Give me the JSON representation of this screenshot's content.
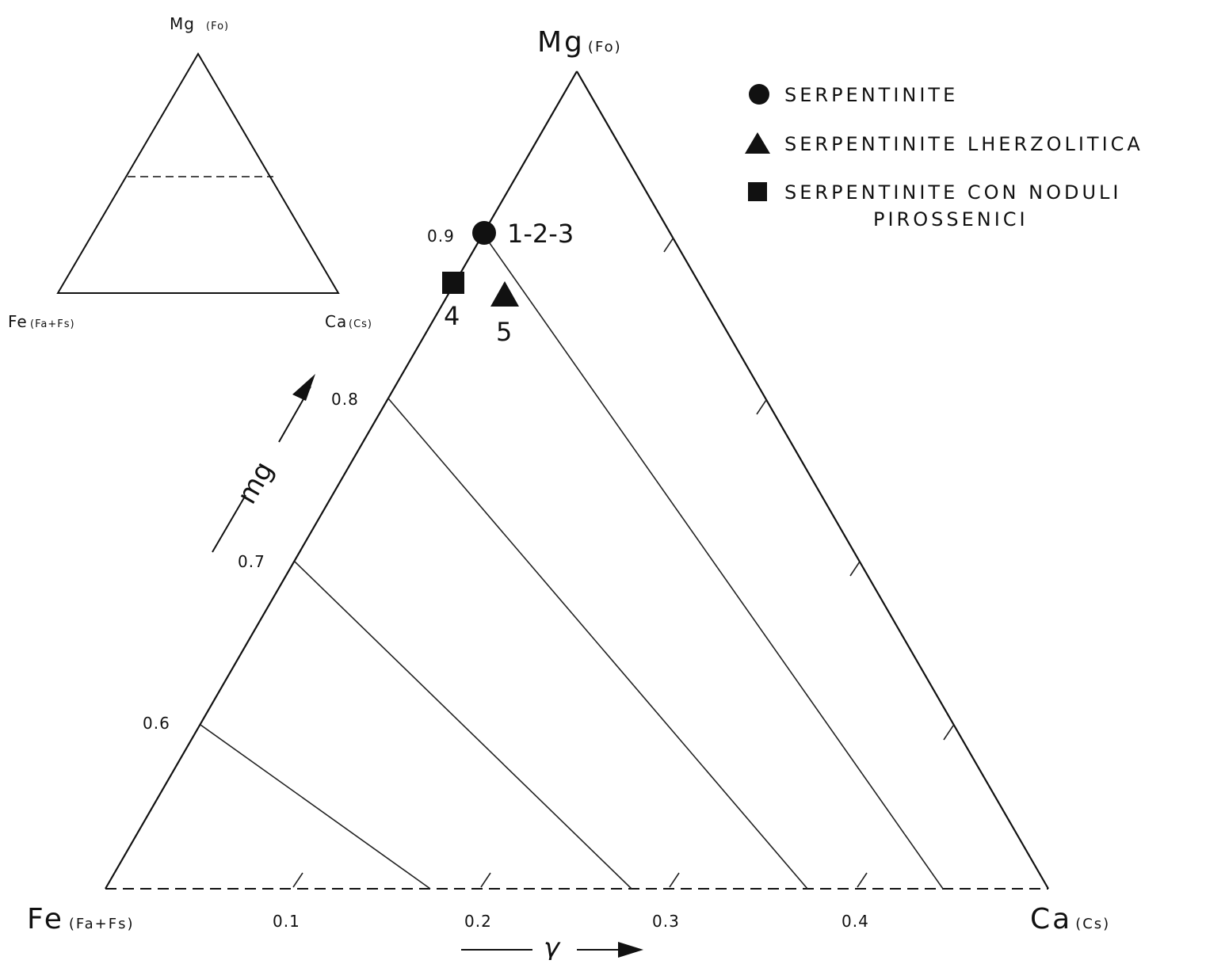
{
  "chart_data": {
    "type": "scatter",
    "diagram": "ternary",
    "vertices": {
      "top": {
        "label": "Mg",
        "sub": "(Fo)"
      },
      "left": {
        "label": "Fe",
        "sub": "(Fa+Fs)"
      },
      "right": {
        "label": "Ca",
        "sub": "(Cs)"
      }
    },
    "axes": {
      "mg": {
        "label": "mg",
        "ticks": [
          "0.6",
          "0.7",
          "0.8",
          "0.9"
        ]
      },
      "gamma": {
        "label": "γ",
        "ticks": [
          "0.1",
          "0.2",
          "0.3",
          "0.4"
        ]
      }
    },
    "points": [
      {
        "label": "1-2-3",
        "series": "SERPENTINITE",
        "marker": "circle",
        "mg": 0.9,
        "gamma": 0.205
      },
      {
        "label": "4",
        "series": "SERPENTINITE CON NODULI PIROSSENICI",
        "marker": "square",
        "mg": 0.87,
        "gamma": 0.185
      },
      {
        "label": "5",
        "series": "SERPENTINITE LHERZOLITICA",
        "marker": "triangle",
        "mg": 0.84,
        "gamma": 0.215
      }
    ],
    "legend": {
      "position": "top-right",
      "items": [
        {
          "marker": "circle",
          "text": "SERPENTINITE"
        },
        {
          "marker": "triangle",
          "text": "SERPENTINITE LHERZOLITICA"
        },
        {
          "marker": "square",
          "text": "SERPENTINITE CON NODULI",
          "text2": "PIROSSENICI"
        }
      ]
    },
    "inset": {
      "top": {
        "label": "Mg",
        "sub": "(Fo)"
      },
      "left": {
        "label": "Fe",
        "sub": "(Fa+Fs)"
      },
      "right": {
        "label": "Ca",
        "sub": "(Cs)"
      }
    }
  }
}
